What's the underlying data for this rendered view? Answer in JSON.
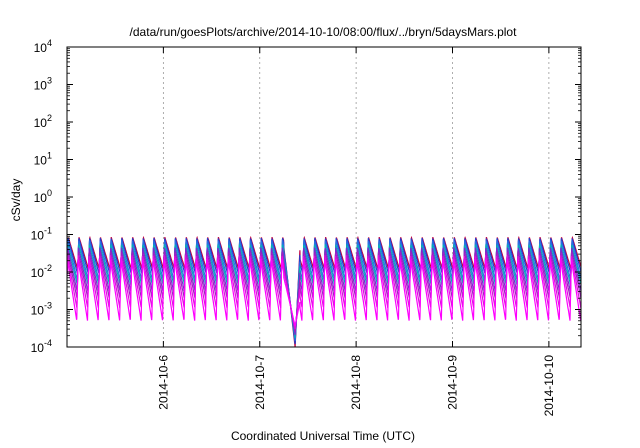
{
  "chart_data": {
    "type": "line",
    "title": "/data/run/goesPlots/archive/2014-10-10/08:00/flux/../bryn/5daysMars.plot",
    "xlabel": "Coordinated Universal Time (UTC)",
    "ylabel": "cSv/day",
    "x_range": [
      "2014-10-05",
      "2014-10-10 08:00"
    ],
    "x_ticks": [
      "2014-10-6",
      "2014-10-7",
      "2014-10-8",
      "2014-10-9",
      "2014-10-10"
    ],
    "y_scale": "log",
    "ylim": [
      0.0001,
      10000
    ],
    "y_ticks": [
      {
        "base": "10",
        "exp": "-4"
      },
      {
        "base": "10",
        "exp": "-3"
      },
      {
        "base": "10",
        "exp": "-2"
      },
      {
        "base": "10",
        "exp": "-1"
      },
      {
        "base": "10",
        "exp": "0"
      },
      {
        "base": "10",
        "exp": "1"
      },
      {
        "base": "10",
        "exp": "2"
      },
      {
        "base": "10",
        "exp": "3"
      },
      {
        "base": "10",
        "exp": "4"
      }
    ],
    "grid": "vertical-dashed",
    "pattern": {
      "period_hours": 2.67,
      "gap_start": "2014-10-07 06:00",
      "gap_end": "2014-10-07 10:00",
      "dip_min": 0.0001
    },
    "series": [
      {
        "color": "#c00040",
        "peak": 0.085,
        "trough": 0.012
      },
      {
        "color": "#1f3fd0",
        "peak": 0.08,
        "trough": 0.009
      },
      {
        "color": "#2a6fe0",
        "peak": 0.07,
        "trough": 0.006
      },
      {
        "color": "#00b0b8",
        "peak": 0.055,
        "trough": 0.0045
      },
      {
        "color": "#7a2bd0",
        "peak": 0.045,
        "trough": 0.003
      },
      {
        "color": "#a020c0",
        "peak": 0.035,
        "trough": 0.002
      },
      {
        "color": "#e010e0",
        "peak": 0.028,
        "trough": 0.0011
      },
      {
        "color": "#ff00ff",
        "peak": 0.022,
        "trough": 0.0005
      }
    ]
  }
}
